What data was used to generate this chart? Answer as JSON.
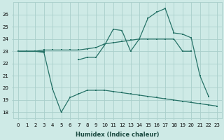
{
  "x": [
    0,
    1,
    2,
    3,
    4,
    5,
    6,
    7,
    8,
    9,
    10,
    11,
    12,
    13,
    14,
    15,
    16,
    17,
    18,
    19,
    20,
    21,
    22,
    23
  ],
  "line_top": [
    23,
    23,
    23,
    23,
    null,
    null,
    null,
    22.3,
    22.5,
    22.5,
    23.5,
    24.8,
    24.7,
    23.0,
    24.0,
    25.7,
    26.2,
    26.5,
    24.5,
    24.4,
    24.1,
    21.0,
    19.3,
    null
  ],
  "line_mid": [
    23,
    23,
    23,
    23.1,
    23.1,
    23.1,
    23.1,
    23.1,
    23.2,
    23.3,
    23.6,
    23.7,
    23.8,
    23.9,
    24.0,
    24.0,
    24.0,
    24.0,
    24.0,
    23.0,
    23.0,
    null,
    null,
    null
  ],
  "line_bot": [
    23,
    23,
    23,
    22.9,
    19.9,
    18.0,
    19.2,
    19.5,
    19.8,
    19.8,
    19.8,
    19.7,
    19.6,
    19.5,
    19.4,
    19.3,
    19.2,
    19.1,
    19.0,
    18.9,
    18.8,
    18.7,
    18.6,
    18.5
  ],
  "ylim": [
    17.5,
    27
  ],
  "yticks": [
    18,
    19,
    20,
    21,
    22,
    23,
    24,
    25,
    26
  ],
  "xticks": [
    0,
    1,
    2,
    3,
    4,
    5,
    6,
    7,
    8,
    9,
    10,
    11,
    12,
    13,
    14,
    15,
    16,
    17,
    18,
    19,
    20,
    21,
    22,
    23
  ],
  "line_color": "#277368",
  "bg_color": "#ceeae6",
  "grid_color": "#aacfcb",
  "xlabel": "Humidex (Indice chaleur)"
}
